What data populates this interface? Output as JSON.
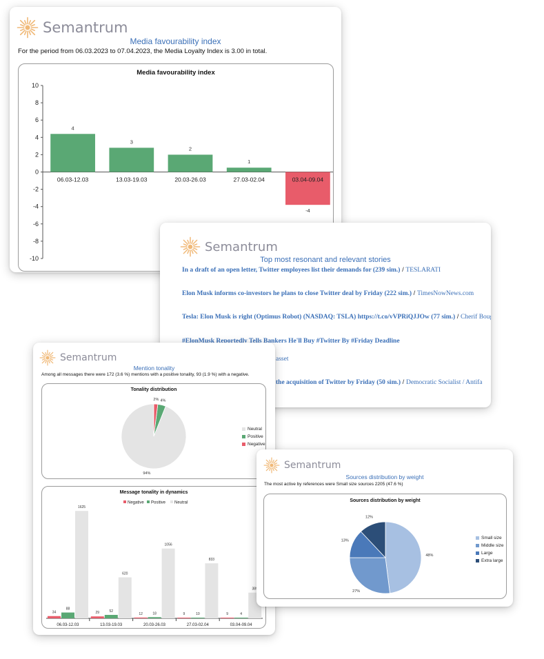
{
  "brand": "Semantrum",
  "colors": {
    "positive": "#5aa874",
    "negative": "#e85c6a",
    "neutral": "#e4e4e4",
    "accent": "#3a6fb7",
    "small": "#a7c0e2",
    "middle": "#7199cd",
    "large": "#4a79b9",
    "xlarge": "#2c4e78"
  },
  "fav": {
    "heading": "Media favourability index",
    "subtitle": "For the period from 06.03.2023 to 07.04.2023, the Media Loyalty Index is 3.00 in total."
  },
  "stories": {
    "heading": "Top most resonant and relevant stories",
    "items": [
      {
        "title": "In a draft of an open letter, Twitter employees list their demands for (239 sim.)",
        "sep": " / ",
        "source": "TESLARATI"
      },
      {
        "title": "Elon Musk informs co-investors he plans to close Twitter deal by Friday (222 sim.)",
        "sep": " / ",
        "source": "TimesNowNews.com"
      },
      {
        "title": "Tesla: Elon Musk is right (Optimus Robot) (NASDAQ: TSLA) https://t.co/vVPRiQJJOw (77 sim.)",
        "sep": " / ",
        "source": "Cherif Bougriou"
      },
      {
        "title": "#ElonMusk Reportedly Tells Bankers He'll Buy #Twitter By #Friday Deadline",
        "sep": "",
        "source": ""
      },
      {
        "title": "",
        "sep": "",
        "source": "asset"
      },
      {
        "title": "the acquisition of Twitter by Friday (50 sim.)",
        "sep": " / ",
        "source": "Democratic Socialist / Antifa"
      }
    ]
  },
  "tonality": {
    "heading": "Mention tonality",
    "subtitle": "Among all messages there were 172 (3.6 %) mentions with a positive tonality, 93 (1.9 %) with a negative.",
    "legend": [
      "Neutral",
      "Positive",
      "Negative"
    ]
  },
  "sources": {
    "heading": "Sources distribution by weight",
    "subtitle": "The most active by references were Small size sources 2205 (47.6 %)",
    "legend": [
      "Small size",
      "Middle size",
      "Large",
      "Extra large"
    ]
  },
  "chart_data": [
    {
      "type": "bar",
      "title": "Media favourability index",
      "categories": [
        "06.03-12.03",
        "13.03-19.03",
        "20.03-26.03",
        "27.03-02.04",
        "03.04-09.04"
      ],
      "values": [
        4.4,
        2.8,
        2,
        0.5,
        -3.8
      ],
      "data_labels": [
        "4",
        "3",
        "2",
        "1",
        "-4"
      ],
      "ylim": [
        -10,
        10
      ],
      "yticks": [
        "10",
        "8",
        "6",
        "4",
        "2",
        "0",
        "-2",
        "-4",
        "-6",
        "-8",
        "-10"
      ]
    },
    {
      "type": "pie",
      "title": "Tonality distribution",
      "labels": [
        "Neutral",
        "Positive",
        "Negative"
      ],
      "values": [
        94,
        4,
        2
      ],
      "data_labels": [
        "94%",
        "4%",
        "2%"
      ]
    },
    {
      "type": "bar",
      "title": "Message tonality in dynamics",
      "categories": [
        "06.03-12.03",
        "13.03-19.03",
        "20.03-26.03",
        "27.03-02.04",
        "03.04-09.04"
      ],
      "series": [
        {
          "name": "Negative",
          "values": [
            34,
            29,
            12,
            9,
            9
          ]
        },
        {
          "name": "Positive",
          "values": [
            88,
            52,
            18,
            10,
            4
          ]
        },
        {
          "name": "Neutral",
          "values": [
            1625,
            620,
            1056,
            833,
            389
          ]
        }
      ],
      "ylim": [
        0,
        1700
      ]
    },
    {
      "type": "pie",
      "title": "Sources distribution by weight",
      "labels": [
        "Small size",
        "Middle size",
        "Large",
        "Extra large"
      ],
      "values": [
        48,
        27,
        13,
        12
      ],
      "data_labels": [
        "48%",
        "27%",
        "13%",
        "12%"
      ]
    }
  ]
}
